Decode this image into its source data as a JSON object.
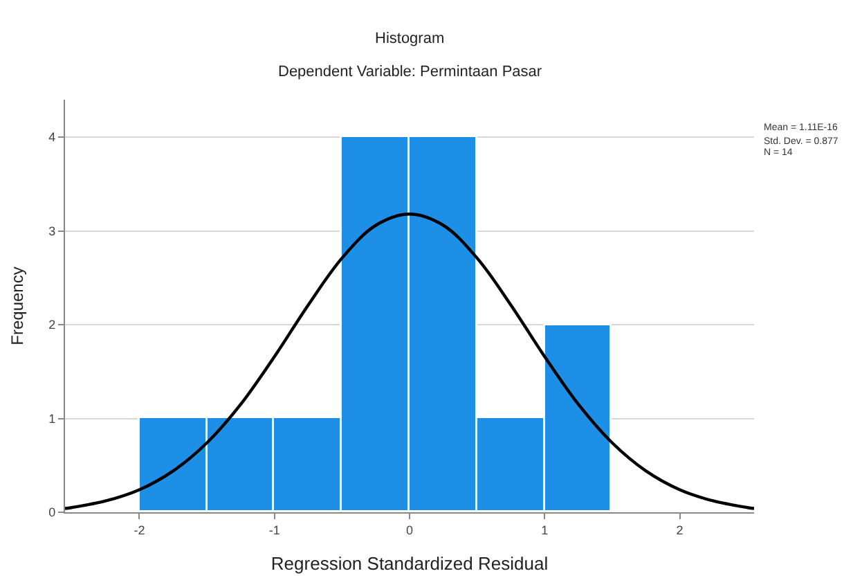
{
  "chart_data": {
    "type": "histogram",
    "title": "Histogram",
    "subtitle": "Dependent Variable: Permintaan Pasar",
    "xlabel": "Regression Standardized Residual",
    "ylabel": "Frequency",
    "bins": [
      -2,
      -1.5,
      -1,
      -0.5,
      0,
      0.5,
      1,
      1.5
    ],
    "values": [
      1,
      1,
      1,
      4,
      4,
      1,
      2
    ],
    "color": "#1e8fe6",
    "series": [
      {
        "type": "line",
        "color": "#000000",
        "x": [
          -2.55,
          -2.5,
          -2.25,
          -2,
          -1.75,
          -1.5,
          -1.25,
          -1,
          -0.75,
          -0.5,
          -0.25,
          0,
          0.25,
          0.5,
          0.75,
          1,
          1.25,
          1.5,
          1.75,
          2,
          2.25,
          2.5,
          2.55
        ],
        "values": [
          0.04,
          0.05,
          0.12,
          0.24,
          0.44,
          0.74,
          1.15,
          1.66,
          2.21,
          2.71,
          3.06,
          3.18,
          3.06,
          2.71,
          2.21,
          1.66,
          1.15,
          0.74,
          0.44,
          0.24,
          0.12,
          0.05,
          0.04
        ]
      }
    ],
    "annotations": [
      "Mean = 1.11E-16",
      "Std. Dev. = 0.877",
      "N = 14"
    ],
    "xlim": [
      -2.55,
      2.55
    ],
    "xticks": [
      -2,
      -1,
      0,
      1,
      2
    ],
    "ylim": [
      0,
      4.4
    ],
    "yticks": [
      0,
      1,
      2,
      3,
      4
    ],
    "grid": "y",
    "marker": "none",
    "line_style": "solid"
  }
}
